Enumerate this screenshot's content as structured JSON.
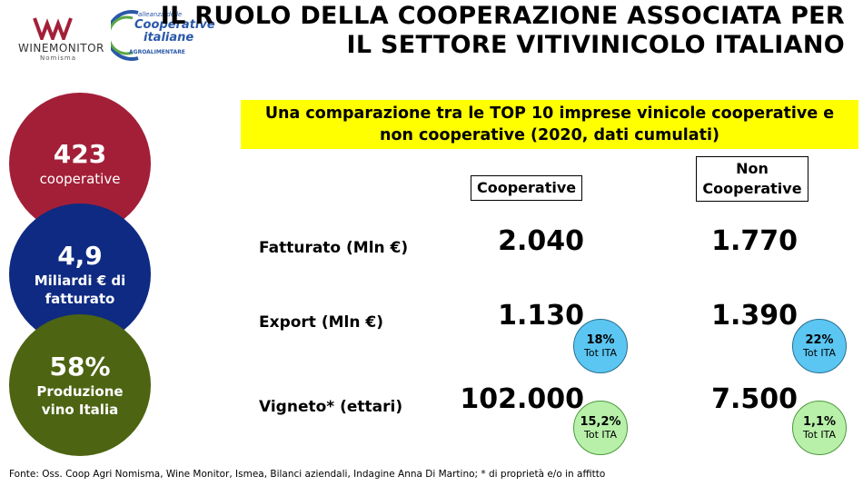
{
  "logos": {
    "winemonitor": "WINEMONITOR",
    "nomisma": "Nomisma",
    "alleanza": [
      "alleanza delle",
      "Cooperative",
      "italiane",
      "AGROALIMENTARE"
    ]
  },
  "title": [
    "IL RUOLO DELLA COOPERAZIONE ASSOCIATA PER",
    "IL SETTORE VITIVINICOLO ITALIANO"
  ],
  "circles": [
    {
      "value": "423",
      "label": "cooperative",
      "color": "#a31f38"
    },
    {
      "value": "4,9",
      "label": "Miliardi € di fatturato",
      "color": "#0e2a82"
    },
    {
      "value": "58%",
      "label": "Produzione vino Italia",
      "color": "#4d6412"
    }
  ],
  "subtitle": "Una comparazione tra le TOP 10 imprese vinicole cooperative e non cooperative (2020, dati cumulati)",
  "table": {
    "columns": [
      "Cooperative",
      "Non Cooperative"
    ],
    "rows": [
      {
        "label": "Fatturato (Mln €)",
        "values": [
          "2.040",
          "1.770"
        ]
      },
      {
        "label": "Export (Mln €)",
        "values": [
          "1.130",
          "1.390"
        ],
        "badges": [
          {
            "value": "18%",
            "label": "Tot ITA",
            "color": "#5bc6f2"
          },
          {
            "value": "22%",
            "label": "Tot ITA",
            "color": "#5bc6f2"
          }
        ]
      },
      {
        "label": "Vigneto* (ettari)",
        "values": [
          "102.000",
          "7.500"
        ],
        "badges": [
          {
            "value": "15,2%",
            "label": "Tot ITA",
            "color": "#b8f0aa"
          },
          {
            "value": "1,1%",
            "label": "Tot ITA",
            "color": "#b8f0aa"
          }
        ]
      }
    ]
  },
  "footnote": "Fonte: Oss. Coop Agri Nomisma, Wine Monitor, Ismea, Bilanci aziendali, Indagine Anna Di Martino; * di proprietà e/o in affitto"
}
